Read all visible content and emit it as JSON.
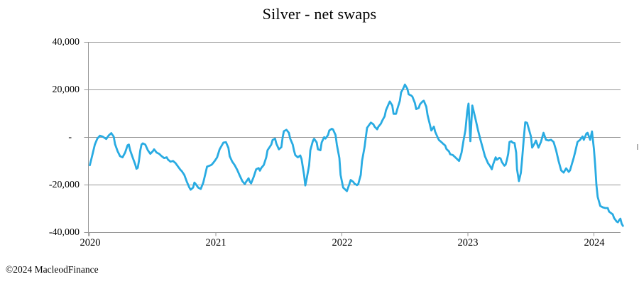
{
  "title": "Silver - net swaps",
  "footer": {
    "copyright": "©2024 MacleodFinance"
  },
  "colors": {
    "line": "#29ABE2",
    "grid": "#969696",
    "axis": "#969696",
    "text": "#000000",
    "background": "#ffffff"
  },
  "chart_data": {
    "type": "line",
    "title": "Silver - net swaps",
    "series_name": "Silver net swaps (contracts)",
    "xlabel": "",
    "ylabel": "",
    "grid": "horizontal-only",
    "legend": "none",
    "xlim": [
      2020,
      2024.25
    ],
    "ylim": [
      -40000,
      40000
    ],
    "x_tick_values": [
      2020,
      2021,
      2022,
      2023,
      2024
    ],
    "x_tick_labels": [
      "2020",
      "2021",
      "2022",
      "2023",
      "2024"
    ],
    "y_tick_values": [
      40000,
      20000,
      0,
      -20000,
      -40000
    ],
    "y_tick_labels": [
      "40,000",
      "20,000",
      "-",
      "-20,000",
      "-40,000"
    ],
    "points": [
      [
        2020.0,
        -11700
      ],
      [
        2020.02,
        -7500
      ],
      [
        2020.04,
        -3000
      ],
      [
        2020.06,
        -500
      ],
      [
        2020.08,
        700
      ],
      [
        2020.1,
        400
      ],
      [
        2020.12,
        -300
      ],
      [
        2020.13,
        -700
      ],
      [
        2020.15,
        800
      ],
      [
        2020.17,
        1800
      ],
      [
        2020.19,
        300
      ],
      [
        2020.2,
        -2800
      ],
      [
        2020.22,
        -5800
      ],
      [
        2020.24,
        -7900
      ],
      [
        2020.26,
        -8400
      ],
      [
        2020.28,
        -6400
      ],
      [
        2020.3,
        -3300
      ],
      [
        2020.31,
        -3000
      ],
      [
        2020.32,
        -5400
      ],
      [
        2020.34,
        -8400
      ],
      [
        2020.36,
        -11300
      ],
      [
        2020.37,
        -13200
      ],
      [
        2020.38,
        -12800
      ],
      [
        2020.39,
        -9900
      ],
      [
        2020.4,
        -5600
      ],
      [
        2020.41,
        -3000
      ],
      [
        2020.42,
        -2500
      ],
      [
        2020.44,
        -3000
      ],
      [
        2020.46,
        -5400
      ],
      [
        2020.48,
        -6900
      ],
      [
        2020.5,
        -5800
      ],
      [
        2020.51,
        -5000
      ],
      [
        2020.53,
        -6400
      ],
      [
        2020.55,
        -6900
      ],
      [
        2020.57,
        -7900
      ],
      [
        2020.59,
        -8700
      ],
      [
        2020.61,
        -8400
      ],
      [
        2020.62,
        -9300
      ],
      [
        2020.64,
        -10200
      ],
      [
        2020.66,
        -9900
      ],
      [
        2020.68,
        -10800
      ],
      [
        2020.7,
        -12300
      ],
      [
        2020.72,
        -13700
      ],
      [
        2020.73,
        -14200
      ],
      [
        2020.75,
        -15800
      ],
      [
        2020.77,
        -18700
      ],
      [
        2020.79,
        -21100
      ],
      [
        2020.8,
        -22000
      ],
      [
        2020.82,
        -21100
      ],
      [
        2020.83,
        -19000
      ],
      [
        2020.84,
        -19600
      ],
      [
        2020.86,
        -21100
      ],
      [
        2020.88,
        -21700
      ],
      [
        2020.9,
        -19000
      ],
      [
        2020.92,
        -14600
      ],
      [
        2020.93,
        -12300
      ],
      [
        2020.96,
        -11700
      ],
      [
        2020.97,
        -11300
      ],
      [
        2020.99,
        -10000
      ],
      [
        2021.01,
        -8400
      ],
      [
        2021.03,
        -5000
      ],
      [
        2021.06,
        -2200
      ],
      [
        2021.08,
        -2000
      ],
      [
        2021.1,
        -4400
      ],
      [
        2021.11,
        -7900
      ],
      [
        2021.13,
        -10200
      ],
      [
        2021.15,
        -11700
      ],
      [
        2021.17,
        -13700
      ],
      [
        2021.19,
        -16100
      ],
      [
        2021.21,
        -18400
      ],
      [
        2021.23,
        -19600
      ],
      [
        2021.24,
        -18700
      ],
      [
        2021.26,
        -17200
      ],
      [
        2021.27,
        -18700
      ],
      [
        2021.28,
        -19300
      ],
      [
        2021.3,
        -16700
      ],
      [
        2021.32,
        -13400
      ],
      [
        2021.34,
        -12900
      ],
      [
        2021.35,
        -14000
      ],
      [
        2021.36,
        -12900
      ],
      [
        2021.38,
        -11600
      ],
      [
        2021.4,
        -8400
      ],
      [
        2021.41,
        -5400
      ],
      [
        2021.44,
        -3000
      ],
      [
        2021.45,
        -1100
      ],
      [
        2021.47,
        -500
      ],
      [
        2021.48,
        -2600
      ],
      [
        2021.5,
        -5000
      ],
      [
        2021.52,
        -4100
      ],
      [
        2021.53,
        0
      ],
      [
        2021.54,
        2600
      ],
      [
        2021.56,
        3200
      ],
      [
        2021.58,
        1900
      ],
      [
        2021.59,
        -500
      ],
      [
        2021.61,
        -3000
      ],
      [
        2021.62,
        -5400
      ],
      [
        2021.63,
        -7400
      ],
      [
        2021.65,
        -8400
      ],
      [
        2021.67,
        -7600
      ],
      [
        2021.68,
        -9100
      ],
      [
        2021.7,
        -15800
      ],
      [
        2021.71,
        -20200
      ],
      [
        2021.72,
        -17600
      ],
      [
        2021.74,
        -11700
      ],
      [
        2021.75,
        -5400
      ],
      [
        2021.77,
        -1500
      ],
      [
        2021.78,
        -600
      ],
      [
        2021.8,
        -2100
      ],
      [
        2021.81,
        -5000
      ],
      [
        2021.83,
        -5400
      ],
      [
        2021.84,
        -2100
      ],
      [
        2021.86,
        100
      ],
      [
        2021.87,
        -500
      ],
      [
        2021.89,
        1000
      ],
      [
        2021.9,
        2900
      ],
      [
        2021.92,
        3600
      ],
      [
        2021.93,
        3300
      ],
      [
        2021.95,
        1000
      ],
      [
        2021.96,
        -3000
      ],
      [
        2021.98,
        -8700
      ],
      [
        2021.99,
        -15800
      ],
      [
        2022.01,
        -21100
      ],
      [
        2022.03,
        -22100
      ],
      [
        2022.04,
        -22600
      ],
      [
        2022.06,
        -19600
      ],
      [
        2022.07,
        -17900
      ],
      [
        2022.09,
        -18700
      ],
      [
        2022.1,
        -19400
      ],
      [
        2022.12,
        -20100
      ],
      [
        2022.13,
        -19600
      ],
      [
        2022.15,
        -15800
      ],
      [
        2022.16,
        -9900
      ],
      [
        2022.18,
        -4000
      ],
      [
        2022.19,
        0
      ],
      [
        2022.2,
        4000
      ],
      [
        2022.22,
        5500
      ],
      [
        2022.23,
        6200
      ],
      [
        2022.25,
        5500
      ],
      [
        2022.26,
        4500
      ],
      [
        2022.28,
        3400
      ],
      [
        2022.29,
        4500
      ],
      [
        2022.31,
        5800
      ],
      [
        2022.32,
        7000
      ],
      [
        2022.34,
        8900
      ],
      [
        2022.35,
        11400
      ],
      [
        2022.37,
        13900
      ],
      [
        2022.38,
        15100
      ],
      [
        2022.4,
        13400
      ],
      [
        2022.41,
        9900
      ],
      [
        2022.43,
        9900
      ],
      [
        2022.44,
        11900
      ],
      [
        2022.46,
        15400
      ],
      [
        2022.47,
        18900
      ],
      [
        2022.49,
        20900
      ],
      [
        2022.5,
        22200
      ],
      [
        2022.52,
        20400
      ],
      [
        2022.53,
        18100
      ],
      [
        2022.55,
        17600
      ],
      [
        2022.56,
        17100
      ],
      [
        2022.58,
        14400
      ],
      [
        2022.59,
        11900
      ],
      [
        2022.61,
        12400
      ],
      [
        2022.62,
        13900
      ],
      [
        2022.64,
        15100
      ],
      [
        2022.65,
        15400
      ],
      [
        2022.67,
        12900
      ],
      [
        2022.68,
        9400
      ],
      [
        2022.7,
        5000
      ],
      [
        2022.71,
        2900
      ],
      [
        2022.73,
        4500
      ],
      [
        2022.74,
        2400
      ],
      [
        2022.76,
        0
      ],
      [
        2022.77,
        -1100
      ],
      [
        2022.79,
        -2000
      ],
      [
        2022.8,
        -2500
      ],
      [
        2022.82,
        -3400
      ],
      [
        2022.83,
        -4900
      ],
      [
        2022.85,
        -5900
      ],
      [
        2022.86,
        -7100
      ],
      [
        2022.88,
        -7400
      ],
      [
        2022.9,
        -8400
      ],
      [
        2022.93,
        -9900
      ],
      [
        2022.95,
        -6400
      ],
      [
        2022.965,
        -1400
      ],
      [
        2022.98,
        3000
      ],
      [
        2022.995,
        11000
      ],
      [
        2023.005,
        14200
      ],
      [
        2023.02,
        -1600
      ],
      [
        2023.035,
        13400
      ],
      [
        2023.06,
        7900
      ],
      [
        2023.08,
        3100
      ],
      [
        2023.1,
        -1000
      ],
      [
        2023.12,
        -4900
      ],
      [
        2023.135,
        -7900
      ],
      [
        2023.16,
        -10900
      ],
      [
        2023.175,
        -12000
      ],
      [
        2023.19,
        -13400
      ],
      [
        2023.2,
        -11400
      ],
      [
        2023.22,
        -8400
      ],
      [
        2023.23,
        -9400
      ],
      [
        2023.25,
        -8600
      ],
      [
        2023.26,
        -8900
      ],
      [
        2023.27,
        -10400
      ],
      [
        2023.29,
        -11900
      ],
      [
        2023.3,
        -11400
      ],
      [
        2023.31,
        -9400
      ],
      [
        2023.32,
        -6900
      ],
      [
        2023.33,
        -1900
      ],
      [
        2023.345,
        -1600
      ],
      [
        2023.355,
        -2200
      ],
      [
        2023.37,
        -2400
      ],
      [
        2023.383,
        -6400
      ],
      [
        2023.39,
        -13400
      ],
      [
        2023.405,
        -18400
      ],
      [
        2023.42,
        -14900
      ],
      [
        2023.43,
        -9400
      ],
      [
        2023.445,
        500
      ],
      [
        2023.455,
        6400
      ],
      [
        2023.47,
        6100
      ],
      [
        2023.5,
        400
      ],
      [
        2023.51,
        -4300
      ],
      [
        2023.53,
        -2500
      ],
      [
        2023.54,
        -1300
      ],
      [
        2023.56,
        -4300
      ],
      [
        2023.58,
        -1900
      ],
      [
        2023.6,
        1900
      ],
      [
        2023.62,
        -1000
      ],
      [
        2023.64,
        -1300
      ],
      [
        2023.66,
        -1000
      ],
      [
        2023.68,
        -1900
      ],
      [
        2023.7,
        -5500
      ],
      [
        2023.72,
        -10000
      ],
      [
        2023.74,
        -13900
      ],
      [
        2023.76,
        -14800
      ],
      [
        2023.78,
        -13000
      ],
      [
        2023.8,
        -14500
      ],
      [
        2023.81,
        -13900
      ],
      [
        2023.84,
        -8500
      ],
      [
        2023.85,
        -6400
      ],
      [
        2023.87,
        -1900
      ],
      [
        2023.89,
        -1000
      ],
      [
        2023.91,
        400
      ],
      [
        2023.92,
        -1000
      ],
      [
        2023.94,
        1600
      ],
      [
        2023.95,
        1900
      ],
      [
        2023.97,
        -1000
      ],
      [
        2023.985,
        2500
      ],
      [
        2024.0,
        -4900
      ],
      [
        2024.01,
        -11800
      ],
      [
        2024.02,
        -19900
      ],
      [
        2024.03,
        -25000
      ],
      [
        2024.05,
        -28800
      ],
      [
        2024.07,
        -29400
      ],
      [
        2024.09,
        -29700
      ],
      [
        2024.11,
        -29700
      ],
      [
        2024.12,
        -31200
      ],
      [
        2024.15,
        -32400
      ],
      [
        2024.16,
        -33900
      ],
      [
        2024.18,
        -35400
      ],
      [
        2024.19,
        -35700
      ],
      [
        2024.2,
        -34800
      ],
      [
        2024.21,
        -34200
      ],
      [
        2024.22,
        -36300
      ],
      [
        2024.23,
        -37200
      ]
    ]
  }
}
